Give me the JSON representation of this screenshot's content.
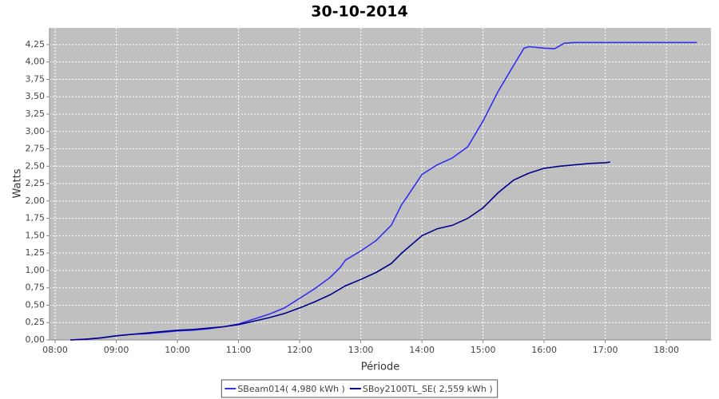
{
  "chart_data": {
    "type": "line",
    "title": "30-10-2014",
    "x_label": "Période",
    "y_label": "Watts",
    "xlim": [
      7.908,
      18.73
    ],
    "ylim": [
      0,
      4.49
    ],
    "xticks": [
      {
        "value": 8,
        "label": "08:00"
      },
      {
        "value": 9,
        "label": "09:00"
      },
      {
        "value": 10,
        "label": "10:00"
      },
      {
        "value": 11,
        "label": "11:00"
      },
      {
        "value": 12,
        "label": "12:00"
      },
      {
        "value": 13,
        "label": "13:00"
      },
      {
        "value": 14,
        "label": "14:00"
      },
      {
        "value": 15,
        "label": "15:00"
      },
      {
        "value": 16,
        "label": "16:00"
      },
      {
        "value": 17,
        "label": "17:00"
      },
      {
        "value": 18,
        "label": "18:00"
      }
    ],
    "yticks": [
      {
        "value": 0,
        "label": "0,00"
      },
      {
        "value": 0.25,
        "label": "0,25"
      },
      {
        "value": 0.5,
        "label": "0,50"
      },
      {
        "value": 0.75,
        "label": "0,75"
      },
      {
        "value": 1,
        "label": "1,00"
      },
      {
        "value": 1.25,
        "label": "1,25"
      },
      {
        "value": 1.5,
        "label": "1,50"
      },
      {
        "value": 1.75,
        "label": "1,75"
      },
      {
        "value": 2,
        "label": "2,00"
      },
      {
        "value": 2.25,
        "label": "2,25"
      },
      {
        "value": 2.5,
        "label": "2,50"
      },
      {
        "value": 2.75,
        "label": "2,75"
      },
      {
        "value": 3,
        "label": "3,00"
      },
      {
        "value": 3.25,
        "label": "3,25"
      },
      {
        "value": 3.5,
        "label": "3,50"
      },
      {
        "value": 3.75,
        "label": "3,75"
      },
      {
        "value": 4,
        "label": "4,00"
      },
      {
        "value": 4.25,
        "label": "4,25"
      }
    ],
    "grid": true,
    "series": [
      {
        "name": "SBeam014( 4,980 kWh )",
        "color": "#3030f0",
        "x": [
          8.25,
          8.5,
          8.75,
          9,
          9.25,
          9.5,
          9.75,
          10,
          10.25,
          10.5,
          10.75,
          11,
          11.25,
          11.5,
          11.75,
          12,
          12.25,
          12.5,
          12.67,
          12.75,
          13,
          13.25,
          13.5,
          13.67,
          13.75,
          14,
          14.25,
          14.5,
          14.75,
          15,
          15.25,
          15.5,
          15.67,
          15.75,
          16,
          16.17,
          16.33,
          16.5,
          17,
          18.5
        ],
        "values": [
          0,
          0.01,
          0.03,
          0.06,
          0.08,
          0.09,
          0.11,
          0.13,
          0.14,
          0.16,
          0.19,
          0.23,
          0.3,
          0.37,
          0.46,
          0.6,
          0.74,
          0.9,
          1.05,
          1.15,
          1.28,
          1.43,
          1.65,
          1.95,
          2.05,
          2.38,
          2.52,
          2.62,
          2.78,
          3.15,
          3.58,
          3.95,
          4.2,
          4.22,
          4.2,
          4.19,
          4.27,
          4.28,
          4.28,
          4.28
        ]
      },
      {
        "name": "SBoy2100TL_SE( 2,559 kWh )",
        "color": "#00008b",
        "x": [
          8.25,
          8.5,
          8.75,
          9,
          9.25,
          9.5,
          9.75,
          10,
          10.25,
          10.5,
          10.75,
          11,
          11.25,
          11.5,
          11.75,
          12,
          12.25,
          12.5,
          12.75,
          13,
          13.25,
          13.5,
          13.67,
          14,
          14.25,
          14.5,
          14.75,
          15,
          15.25,
          15.5,
          15.75,
          16,
          16.25,
          16.5,
          16.75,
          17,
          17.08
        ],
        "values": [
          0,
          0.01,
          0.03,
          0.06,
          0.08,
          0.1,
          0.12,
          0.14,
          0.15,
          0.17,
          0.19,
          0.22,
          0.27,
          0.32,
          0.38,
          0.46,
          0.55,
          0.65,
          0.78,
          0.87,
          0.97,
          1.1,
          1.25,
          1.5,
          1.6,
          1.65,
          1.75,
          1.9,
          2.12,
          2.3,
          2.4,
          2.47,
          2.5,
          2.52,
          2.54,
          2.55,
          2.56
        ]
      }
    ]
  }
}
